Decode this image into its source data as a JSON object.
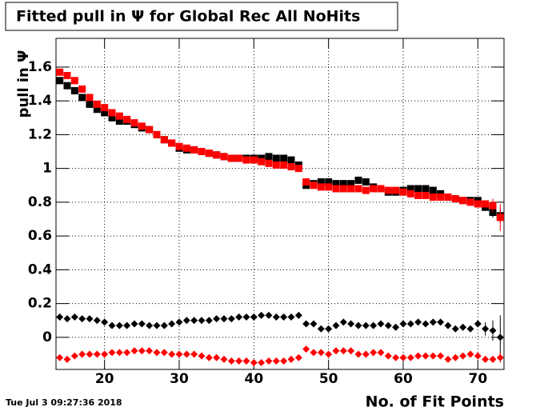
{
  "chart_data": {
    "type": "scatter",
    "title": "Fitted pull in  Ψ  for Global Rec All NoHits",
    "y_label": "pull in Ψ",
    "x_label": "No. of Fit Points",
    "timestamp": "Tue Jul  3 09:27:36 2018",
    "x": [
      14,
      15,
      16,
      17,
      18,
      19,
      20,
      21,
      22,
      23,
      24,
      25,
      26,
      27,
      28,
      29,
      30,
      31,
      32,
      33,
      34,
      35,
      36,
      37,
      38,
      39,
      40,
      41,
      42,
      43,
      44,
      45,
      46,
      47,
      48,
      49,
      50,
      51,
      52,
      53,
      54,
      55,
      56,
      57,
      58,
      59,
      60,
      61,
      62,
      63,
      64,
      65,
      66,
      67,
      68,
      69,
      70,
      71,
      72,
      73
    ],
    "series": [
      {
        "color": "#000000",
        "marker": "square",
        "values": [
          1.52,
          1.49,
          1.46,
          1.42,
          1.38,
          1.35,
          1.33,
          1.3,
          1.28,
          1.28,
          1.26,
          1.24,
          1.23,
          1.2,
          1.17,
          1.15,
          1.12,
          1.11,
          1.11,
          1.1,
          1.09,
          1.08,
          1.07,
          1.06,
          1.06,
          1.06,
          1.06,
          1.06,
          1.07,
          1.06,
          1.06,
          1.05,
          1.02,
          0.9,
          0.91,
          0.92,
          0.92,
          0.91,
          0.91,
          0.91,
          0.93,
          0.92,
          0.89,
          0.88,
          0.86,
          0.86,
          0.87,
          0.88,
          0.88,
          0.88,
          0.87,
          0.85,
          0.83,
          0.82,
          0.81,
          0.81,
          0.81,
          0.77,
          0.74,
          0.72
        ],
        "errors": [
          0.01,
          0.01,
          0.01,
          0.01,
          0.01,
          0.01,
          0.01,
          0.01,
          0.01,
          0.01,
          0.01,
          0.01,
          0.01,
          0.01,
          0.01,
          0.01,
          0.01,
          0.01,
          0.01,
          0.01,
          0.01,
          0.01,
          0.01,
          0.01,
          0.01,
          0.01,
          0.01,
          0.01,
          0.01,
          0.01,
          0.01,
          0.01,
          0.01,
          0.01,
          0.01,
          0.01,
          0.01,
          0.01,
          0.01,
          0.01,
          0.01,
          0.01,
          0.01,
          0.01,
          0.01,
          0.01,
          0.01,
          0.01,
          0.01,
          0.01,
          0.01,
          0.01,
          0.01,
          0.01,
          0.01,
          0.01,
          0.02,
          0.02,
          0.03,
          0.04
        ]
      },
      {
        "color": "#ff0000",
        "marker": "square",
        "values": [
          1.57,
          1.55,
          1.52,
          1.47,
          1.42,
          1.38,
          1.36,
          1.33,
          1.31,
          1.29,
          1.27,
          1.25,
          1.23,
          1.2,
          1.17,
          1.15,
          1.13,
          1.12,
          1.11,
          1.1,
          1.09,
          1.08,
          1.07,
          1.06,
          1.06,
          1.05,
          1.05,
          1.04,
          1.03,
          1.02,
          1.02,
          1.01,
          1.0,
          0.92,
          0.9,
          0.89,
          0.89,
          0.88,
          0.88,
          0.88,
          0.88,
          0.87,
          0.88,
          0.88,
          0.87,
          0.87,
          0.86,
          0.85,
          0.84,
          0.84,
          0.83,
          0.83,
          0.83,
          0.82,
          0.81,
          0.8,
          0.79,
          0.79,
          0.78,
          0.71
        ],
        "errors": [
          0.01,
          0.01,
          0.01,
          0.01,
          0.01,
          0.01,
          0.01,
          0.01,
          0.01,
          0.01,
          0.01,
          0.01,
          0.01,
          0.01,
          0.01,
          0.01,
          0.01,
          0.01,
          0.01,
          0.01,
          0.01,
          0.01,
          0.01,
          0.01,
          0.01,
          0.01,
          0.01,
          0.01,
          0.01,
          0.01,
          0.01,
          0.01,
          0.01,
          0.01,
          0.01,
          0.01,
          0.01,
          0.01,
          0.01,
          0.01,
          0.01,
          0.01,
          0.01,
          0.01,
          0.01,
          0.01,
          0.01,
          0.01,
          0.01,
          0.01,
          0.01,
          0.01,
          0.01,
          0.01,
          0.01,
          0.01,
          0.02,
          0.02,
          0.04,
          0.08
        ]
      },
      {
        "color": "#000000",
        "marker": "diamond",
        "values": [
          0.12,
          0.11,
          0.12,
          0.11,
          0.11,
          0.1,
          0.09,
          0.07,
          0.07,
          0.07,
          0.08,
          0.08,
          0.07,
          0.07,
          0.07,
          0.08,
          0.09,
          0.1,
          0.1,
          0.1,
          0.1,
          0.11,
          0.11,
          0.11,
          0.12,
          0.12,
          0.12,
          0.13,
          0.13,
          0.12,
          0.12,
          0.12,
          0.13,
          0.08,
          0.08,
          0.05,
          0.05,
          0.07,
          0.09,
          0.08,
          0.07,
          0.07,
          0.07,
          0.08,
          0.07,
          0.06,
          0.08,
          0.08,
          0.09,
          0.08,
          0.09,
          0.09,
          0.07,
          0.05,
          0.06,
          0.05,
          0.08,
          0.05,
          0.04,
          0.0
        ],
        "errors": [
          0.02,
          0.01,
          0.01,
          0.01,
          0.01,
          0.01,
          0.01,
          0.01,
          0.01,
          0.01,
          0.01,
          0.01,
          0.01,
          0.01,
          0.01,
          0.01,
          0.01,
          0.01,
          0.01,
          0.01,
          0.01,
          0.01,
          0.01,
          0.01,
          0.01,
          0.01,
          0.01,
          0.01,
          0.01,
          0.01,
          0.01,
          0.01,
          0.02,
          0.01,
          0.01,
          0.01,
          0.01,
          0.01,
          0.01,
          0.01,
          0.01,
          0.01,
          0.01,
          0.01,
          0.01,
          0.01,
          0.01,
          0.01,
          0.01,
          0.01,
          0.01,
          0.01,
          0.01,
          0.01,
          0.01,
          0.01,
          0.02,
          0.04,
          0.06,
          0.13
        ]
      },
      {
        "color": "#ff0000",
        "marker": "diamond",
        "values": [
          -0.12,
          -0.13,
          -0.11,
          -0.1,
          -0.1,
          -0.1,
          -0.1,
          -0.09,
          -0.09,
          -0.09,
          -0.08,
          -0.08,
          -0.08,
          -0.09,
          -0.09,
          -0.1,
          -0.1,
          -0.1,
          -0.1,
          -0.11,
          -0.12,
          -0.12,
          -0.13,
          -0.14,
          -0.14,
          -0.14,
          -0.15,
          -0.15,
          -0.14,
          -0.14,
          -0.14,
          -0.13,
          -0.12,
          -0.07,
          -0.09,
          -0.09,
          -0.1,
          -0.08,
          -0.08,
          -0.08,
          -0.1,
          -0.1,
          -0.09,
          -0.09,
          -0.11,
          -0.12,
          -0.12,
          -0.12,
          -0.11,
          -0.11,
          -0.11,
          -0.11,
          -0.13,
          -0.12,
          -0.11,
          -0.1,
          -0.11,
          -0.13,
          -0.13,
          -0.12
        ],
        "errors": [
          0.01,
          0.01,
          0.01,
          0.01,
          0.01,
          0.01,
          0.01,
          0.01,
          0.01,
          0.01,
          0.01,
          0.01,
          0.01,
          0.01,
          0.01,
          0.01,
          0.01,
          0.01,
          0.01,
          0.01,
          0.01,
          0.01,
          0.01,
          0.01,
          0.01,
          0.01,
          0.01,
          0.01,
          0.01,
          0.01,
          0.01,
          0.01,
          0.01,
          0.01,
          0.01,
          0.01,
          0.01,
          0.01,
          0.01,
          0.01,
          0.01,
          0.01,
          0.01,
          0.01,
          0.01,
          0.01,
          0.01,
          0.01,
          0.01,
          0.01,
          0.01,
          0.01,
          0.01,
          0.01,
          0.01,
          0.01,
          0.01,
          0.02,
          0.02,
          0.03
        ]
      }
    ],
    "xlim": [
      13.5,
      73.5
    ],
    "xticks": [
      20,
      30,
      40,
      50,
      60,
      70
    ],
    "ylim": [
      -0.19,
      1.77
    ],
    "yticks": [
      0,
      0.2,
      0.4,
      0.6,
      0.8,
      1,
      1.2,
      1.4,
      1.6
    ],
    "grid": true
  }
}
